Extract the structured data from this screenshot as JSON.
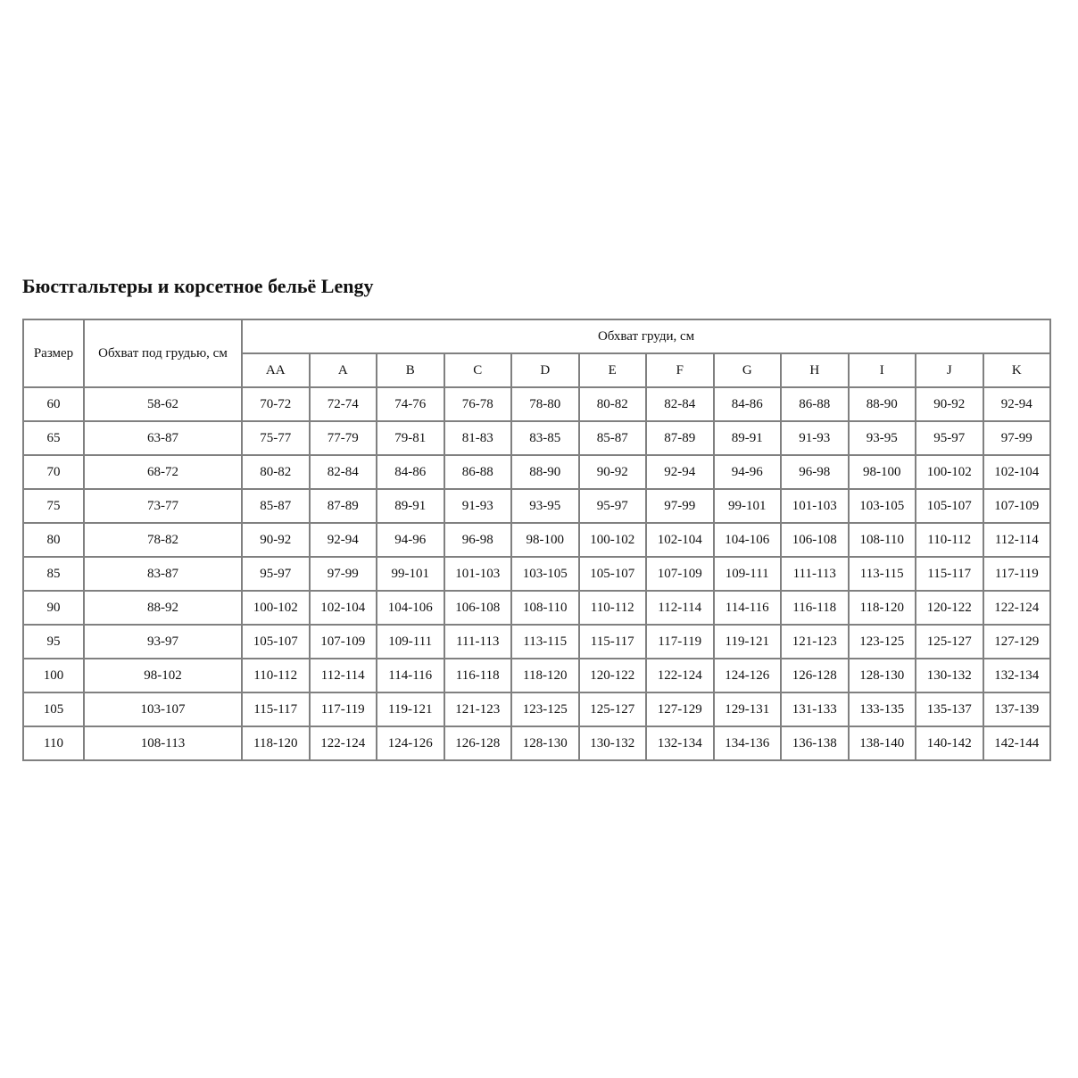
{
  "title": "Бюстгальтеры и корсетное бельё Lengy",
  "headers": {
    "size": "Размер",
    "underbust": "Обхват под грудью, см",
    "bust": "Обхват груди, см",
    "cups": [
      "AA",
      "A",
      "B",
      "C",
      "D",
      "E",
      "F",
      "G",
      "H",
      "I",
      "J",
      "K"
    ]
  },
  "rows": [
    {
      "size": "60",
      "underbust": "58-62",
      "cups": [
        "70-72",
        "72-74",
        "74-76",
        "76-78",
        "78-80",
        "80-82",
        "82-84",
        "84-86",
        "86-88",
        "88-90",
        "90-92",
        "92-94"
      ]
    },
    {
      "size": "65",
      "underbust": "63-87",
      "cups": [
        "75-77",
        "77-79",
        "79-81",
        "81-83",
        "83-85",
        "85-87",
        "87-89",
        "89-91",
        "91-93",
        "93-95",
        "95-97",
        "97-99"
      ]
    },
    {
      "size": "70",
      "underbust": "68-72",
      "cups": [
        "80-82",
        "82-84",
        "84-86",
        "86-88",
        "88-90",
        "90-92",
        "92-94",
        "94-96",
        "96-98",
        "98-100",
        "100-102",
        "102-104"
      ]
    },
    {
      "size": "75",
      "underbust": "73-77",
      "cups": [
        "85-87",
        "87-89",
        "89-91",
        "91-93",
        "93-95",
        "95-97",
        "97-99",
        "99-101",
        "101-103",
        "103-105",
        "105-107",
        "107-109"
      ]
    },
    {
      "size": "80",
      "underbust": "78-82",
      "cups": [
        "90-92",
        "92-94",
        "94-96",
        "96-98",
        "98-100",
        "100-102",
        "102-104",
        "104-106",
        "106-108",
        "108-110",
        "110-112",
        "112-114"
      ]
    },
    {
      "size": "85",
      "underbust": "83-87",
      "cups": [
        "95-97",
        "97-99",
        "99-101",
        "101-103",
        "103-105",
        "105-107",
        "107-109",
        "109-111",
        "111-113",
        "113-115",
        "115-117",
        "117-119"
      ]
    },
    {
      "size": "90",
      "underbust": "88-92",
      "cups": [
        "100-102",
        "102-104",
        "104-106",
        "106-108",
        "108-110",
        "110-112",
        "112-114",
        "114-116",
        "116-118",
        "118-120",
        "120-122",
        "122-124"
      ]
    },
    {
      "size": "95",
      "underbust": "93-97",
      "cups": [
        "105-107",
        "107-109",
        "109-111",
        "111-113",
        "113-115",
        "115-117",
        "117-119",
        "119-121",
        "121-123",
        "123-125",
        "125-127",
        "127-129"
      ]
    },
    {
      "size": "100",
      "underbust": "98-102",
      "cups": [
        "110-112",
        "112-114",
        "114-116",
        "116-118",
        "118-120",
        "120-122",
        "122-124",
        "124-126",
        "126-128",
        "128-130",
        "130-132",
        "132-134"
      ]
    },
    {
      "size": "105",
      "underbust": "103-107",
      "cups": [
        "115-117",
        "117-119",
        "119-121",
        "121-123",
        "123-125",
        "125-127",
        "127-129",
        "129-131",
        "131-133",
        "133-135",
        "135-137",
        "137-139"
      ]
    },
    {
      "size": "110",
      "underbust": "108-113",
      "cups": [
        "118-120",
        "122-124",
        "124-126",
        "126-128",
        "128-130",
        "130-132",
        "132-134",
        "134-136",
        "136-138",
        "138-140",
        "140-142",
        "142-144"
      ]
    }
  ]
}
